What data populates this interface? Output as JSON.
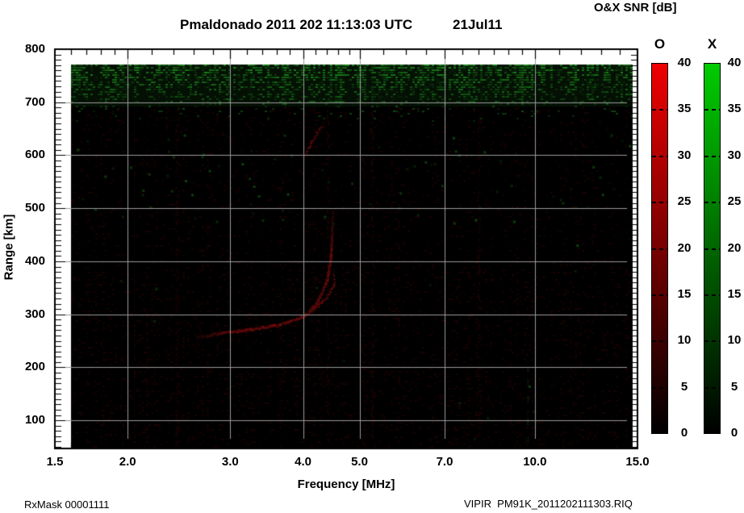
{
  "footer": {
    "left": "RxMask 00001111",
    "right": "VIPIR  PM91K_2011202111303.RIQ"
  },
  "chart_data": {
    "type": "heatmap",
    "title": "Pmaldonado 2011 202 11:13:03 UTC",
    "date_label": "21Jul11",
    "xlabel": "Frequency [MHz]",
    "ylabel": "Range [km]",
    "x_scale": "log",
    "x_range_mhz": [
      1.5,
      15.0
    ],
    "y_range_km": [
      47,
      800
    ],
    "x_ticks": [
      1.5,
      2,
      3,
      4,
      5,
      7,
      10,
      15
    ],
    "x_tick_labels": [
      "1.5",
      "2.0",
      "3.0",
      "4.0",
      "5.0",
      "7.0",
      "10.0",
      "15.0"
    ],
    "y_ticks": [
      100,
      200,
      300,
      400,
      500,
      600,
      700,
      800
    ],
    "y_tick_labels": [
      "100",
      "200",
      "300",
      "400",
      "500",
      "600",
      "700",
      "800"
    ],
    "grid": true,
    "grid_color": "#9b9b9b",
    "plot_bg": "#000000",
    "data_extent": {
      "freq_mhz": [
        1.6,
        14.7
      ],
      "range_km": [
        47,
        771
      ]
    },
    "features": {
      "noise_band": {
        "description": "dense green speckle noise band across all frequencies",
        "range_km": [
          660,
          771
        ],
        "fade_to_km": 620,
        "color": "#1e7a1e"
      },
      "o_trace": {
        "description": "faint red O-mode F-layer echo trace rising to asymptote near foF2",
        "color": "#8c1414",
        "points_mhz_km": [
          [
            2.62,
            258
          ],
          [
            2.8,
            263
          ],
          [
            3.0,
            268
          ],
          [
            3.2,
            272
          ],
          [
            3.45,
            277
          ],
          [
            3.65,
            282
          ],
          [
            3.85,
            290
          ],
          [
            4.0,
            298
          ],
          [
            4.12,
            310
          ],
          [
            4.22,
            325
          ],
          [
            4.3,
            342
          ],
          [
            4.37,
            362
          ],
          [
            4.42,
            385
          ],
          [
            4.45,
            410
          ],
          [
            4.47,
            440
          ],
          [
            4.48,
            470
          ],
          [
            4.49,
            500
          ]
        ]
      },
      "x_trace": {
        "description": "faint parallel X-mode echo segment",
        "color": "#701010",
        "points_mhz_km": [
          [
            4.06,
            300
          ],
          [
            4.2,
            314
          ],
          [
            4.33,
            328
          ],
          [
            4.45,
            344
          ],
          [
            4.52,
            360
          ],
          [
            4.5,
            385
          ]
        ]
      },
      "upper_trace": {
        "description": "faint red high-range echo segment near 4 MHz",
        "color": "#6a0f0f",
        "points_mhz_km": [
          [
            4.0,
            598
          ],
          [
            4.1,
            620
          ],
          [
            4.22,
            644
          ],
          [
            4.33,
            662
          ]
        ]
      },
      "rfi_stripes_mhz": [
        2.43,
        4.4,
        5.25,
        8.0
      ],
      "green_stripe": {
        "freq_mhz": 9.7,
        "range_km": [
          55,
          205
        ]
      }
    },
    "colorbars": {
      "title": "O&X SNR [dB]",
      "min": 0,
      "max": 40,
      "units": "dB",
      "ticks": [
        0,
        5,
        10,
        15,
        20,
        25,
        30,
        35,
        40
      ],
      "tick_labels": [
        "0",
        "5",
        "10",
        "15",
        "20",
        "25",
        "30",
        "35",
        "40"
      ],
      "bars": [
        {
          "label": "O",
          "top_color": "#ee0000",
          "bottom_color": "#000000"
        },
        {
          "label": "X",
          "top_color": "#00cc00",
          "bottom_color": "#000000"
        }
      ]
    }
  }
}
